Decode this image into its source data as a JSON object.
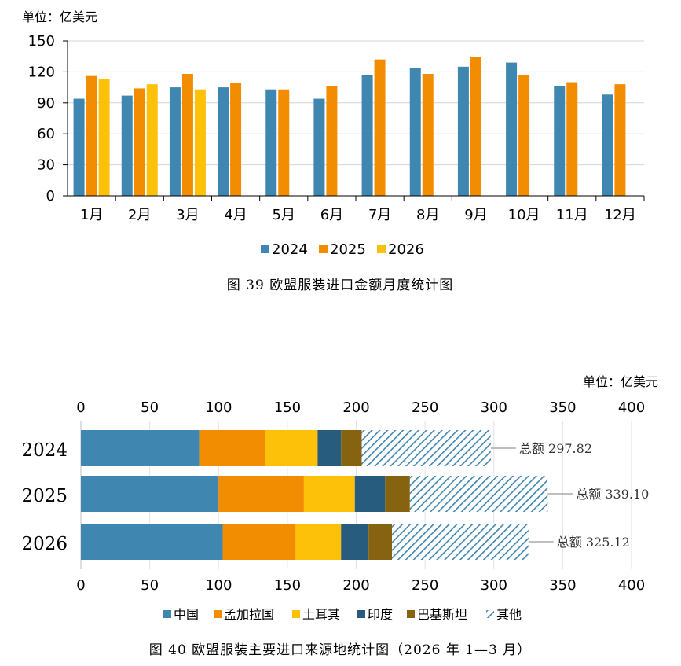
{
  "colors": {
    "c2024": "#3F86B0",
    "c2025": "#F28C00",
    "c2026": "#FDC10A",
    "china": "#3F86B0",
    "bangladesh": "#F28C00",
    "turkey": "#FDC10A",
    "india": "#285C7E",
    "pakistan": "#856311",
    "others": "#3F86B0"
  },
  "chart_data": [
    {
      "type": "bar",
      "unit_label": "单位：亿美元",
      "categories": [
        "1月",
        "2月",
        "3月",
        "4月",
        "5月",
        "6月",
        "7月",
        "8月",
        "9月",
        "10月",
        "11月",
        "12月"
      ],
      "ylim": [
        0,
        150
      ],
      "yticks": [
        "0",
        "30",
        "60",
        "90",
        "120",
        "150"
      ],
      "grid": true,
      "legend_position": "bottom",
      "series": [
        {
          "name": "2024",
          "values": [
            94,
            97,
            105,
            105,
            103,
            94,
            117,
            124,
            125,
            129,
            106,
            98
          ]
        },
        {
          "name": "2025",
          "values": [
            116,
            104,
            118,
            109,
            103,
            106,
            132,
            118,
            134,
            117,
            110,
            108
          ]
        },
        {
          "name": "2026",
          "values": [
            113,
            108,
            103,
            null,
            null,
            null,
            null,
            null,
            null,
            null,
            null,
            null
          ]
        }
      ],
      "caption": "图 39    欧盟服装进口金额月度统计图"
    },
    {
      "type": "bar",
      "orientation": "horizontal",
      "stacked": true,
      "unit_label": "单位：亿美元",
      "categories": [
        "2024",
        "2025",
        "2026"
      ],
      "xlim": [
        0,
        400
      ],
      "xticks": [
        "0",
        "50",
        "100",
        "150",
        "200",
        "250",
        "300",
        "350",
        "400"
      ],
      "grid": true,
      "legend_position": "bottom",
      "series": [
        {
          "name": "中国",
          "values": [
            86,
            100,
            103
          ]
        },
        {
          "name": "孟加拉国",
          "values": [
            48,
            62,
            53
          ]
        },
        {
          "name": "土耳其",
          "values": [
            38,
            37,
            33
          ]
        },
        {
          "name": "印度",
          "values": [
            17,
            22,
            20
          ]
        },
        {
          "name": "巴基斯坦",
          "values": [
            15,
            18,
            17
          ]
        },
        {
          "name": "其他",
          "values": [
            93.82,
            100.1,
            99.12
          ]
        }
      ],
      "totals": [
        {
          "label": "总额",
          "value": "297.82"
        },
        {
          "label": "总额",
          "value": "339.10"
        },
        {
          "label": "总额",
          "value": "325.12"
        }
      ],
      "caption": "图 40    欧盟服装主要进口来源地统计图（2026 年 1—3 月）"
    }
  ]
}
